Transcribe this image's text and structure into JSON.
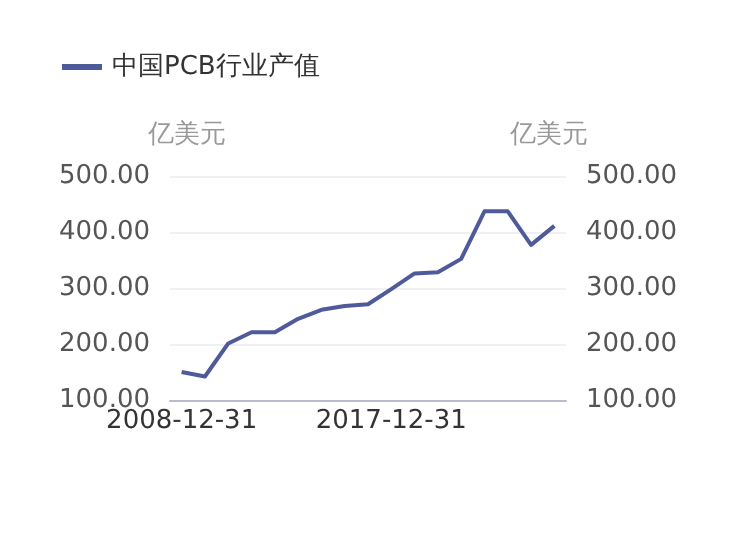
{
  "chart_data": {
    "type": "line",
    "categories": [
      "2008-12-31",
      null,
      null,
      null,
      null,
      null,
      null,
      null,
      null,
      "2017-12-31",
      null,
      null,
      null,
      null,
      null,
      null,
      null
    ],
    "series": [
      {
        "name": "中国PCB行业产值",
        "color": "#4e5a9a",
        "values": [
          150,
          142,
          201,
          221,
          221,
          245,
          261,
          268,
          271,
          298,
          326,
          328,
          352,
          437,
          437,
          377,
          411
        ]
      }
    ],
    "ylabel": "亿美元",
    "y2label": "亿美元",
    "ylim": [
      100,
      500
    ],
    "yticks": [
      {
        "value": 100,
        "label": "100.00"
      },
      {
        "value": 200,
        "label": "200.00"
      },
      {
        "value": 300,
        "label": "300.00"
      },
      {
        "value": 400,
        "label": "400.00"
      },
      {
        "value": 500,
        "label": "500.00"
      }
    ],
    "y2lim": [
      100,
      500
    ],
    "y2ticks": [
      {
        "value": 100,
        "label": "100.00"
      },
      {
        "value": 200,
        "label": "200.00"
      },
      {
        "value": 300,
        "label": "300.00"
      },
      {
        "value": 400,
        "label": "400.00"
      },
      {
        "value": 500,
        "label": "500.00"
      }
    ],
    "grid": "y",
    "legend": "top left",
    "marker": "none",
    "line_style": "solid"
  }
}
